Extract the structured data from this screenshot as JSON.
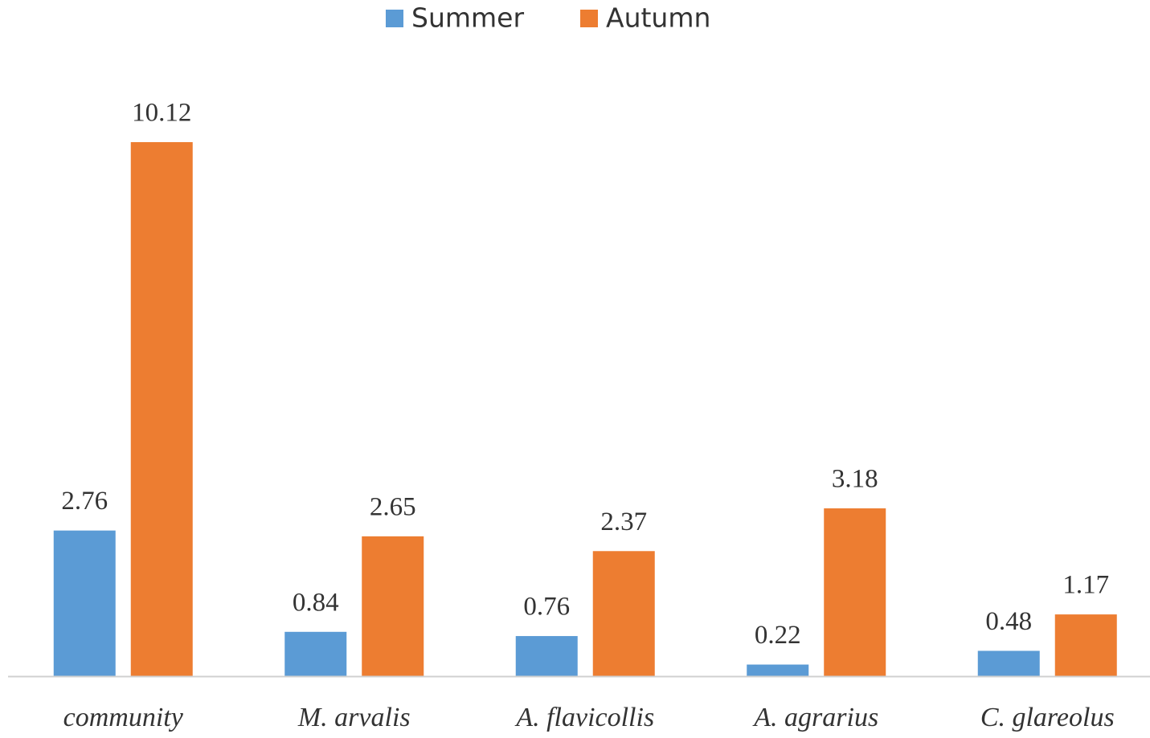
{
  "chart_data": {
    "type": "bar",
    "categories": [
      "community",
      "M. arvalis",
      "A. flavicollis",
      "A. agrarius",
      "C. glareolus"
    ],
    "series": [
      {
        "name": "Summer",
        "color": "#5b9bd5",
        "values": [
          2.76,
          0.84,
          0.76,
          0.22,
          0.48
        ]
      },
      {
        "name": "Autumn",
        "color": "#ed7d31",
        "values": [
          10.12,
          2.65,
          2.37,
          3.18,
          1.17
        ]
      }
    ],
    "legend": "top"
  }
}
